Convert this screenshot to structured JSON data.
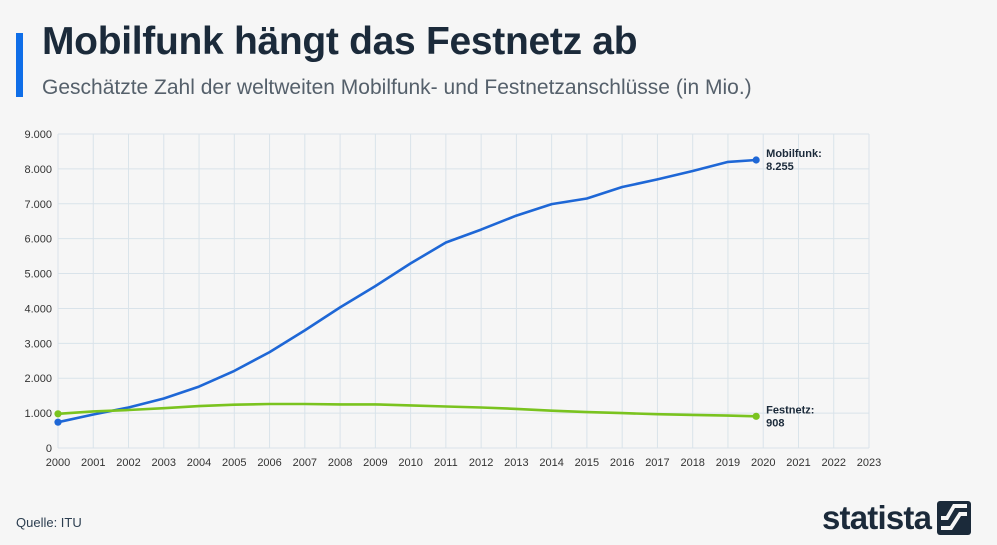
{
  "header": {
    "title": "Mobilfunk hängt das Festnetz ab",
    "subtitle": "Geschätzte Zahl der weltweiten Mobilfunk- und Festnetzanschlüsse (in Mio.)"
  },
  "footer": {
    "source": "Quelle: ITU",
    "brand": "statista",
    "brand_icon": "statista-logo-icon"
  },
  "colors": {
    "mobile": "#1e67d6",
    "fixed": "#7ac31f",
    "grid": "#d9e3ea",
    "text": "#1b2a3a",
    "accent": "#0f6ee8"
  },
  "chart_data": {
    "type": "line",
    "title": "Mobilfunk hängt das Festnetz ab",
    "subtitle": "Geschätzte Zahl der weltweiten Mobilfunk- und Festnetzanschlüsse (in Mio.)",
    "xlabel": "",
    "ylabel": "",
    "x": [
      2000,
      2001,
      2002,
      2003,
      2004,
      2005,
      2006,
      2007,
      2008,
      2009,
      2010,
      2011,
      2012,
      2013,
      2014,
      2015,
      2016,
      2017,
      2018,
      2019,
      2019.8
    ],
    "xticks": [
      "2000",
      "2001",
      "2002",
      "2003",
      "2004",
      "2005",
      "2006",
      "2007",
      "2008",
      "2009",
      "2010",
      "2011",
      "2012",
      "2013",
      "2014",
      "2015",
      "2016",
      "2017",
      "2018",
      "2019",
      "2020",
      "2021",
      "2022",
      "2023"
    ],
    "xlim": [
      2000,
      2023
    ],
    "yticks": [
      "0",
      "1.000",
      "2.000",
      "3.000",
      "4.000",
      "5.000",
      "6.000",
      "7.000",
      "8.000",
      "9.000"
    ],
    "ylim": [
      0,
      9000
    ],
    "grid": true,
    "series": [
      {
        "name": "Mobilfunk",
        "label": "Mobilfunk:",
        "end_label": "8.255",
        "values": [
          740,
          960,
          1160,
          1420,
          1760,
          2210,
          2750,
          3370,
          4030,
          4640,
          5290,
          5890,
          6260,
          6660,
          6990,
          7150,
          7480,
          7700,
          7940,
          8200,
          8255
        ]
      },
      {
        "name": "Festnetz",
        "label": "Festnetz:",
        "end_label": "908",
        "values": [
          980,
          1050,
          1090,
          1140,
          1200,
          1240,
          1260,
          1260,
          1250,
          1250,
          1220,
          1190,
          1160,
          1120,
          1070,
          1030,
          1000,
          970,
          950,
          930,
          908
        ]
      }
    ]
  }
}
